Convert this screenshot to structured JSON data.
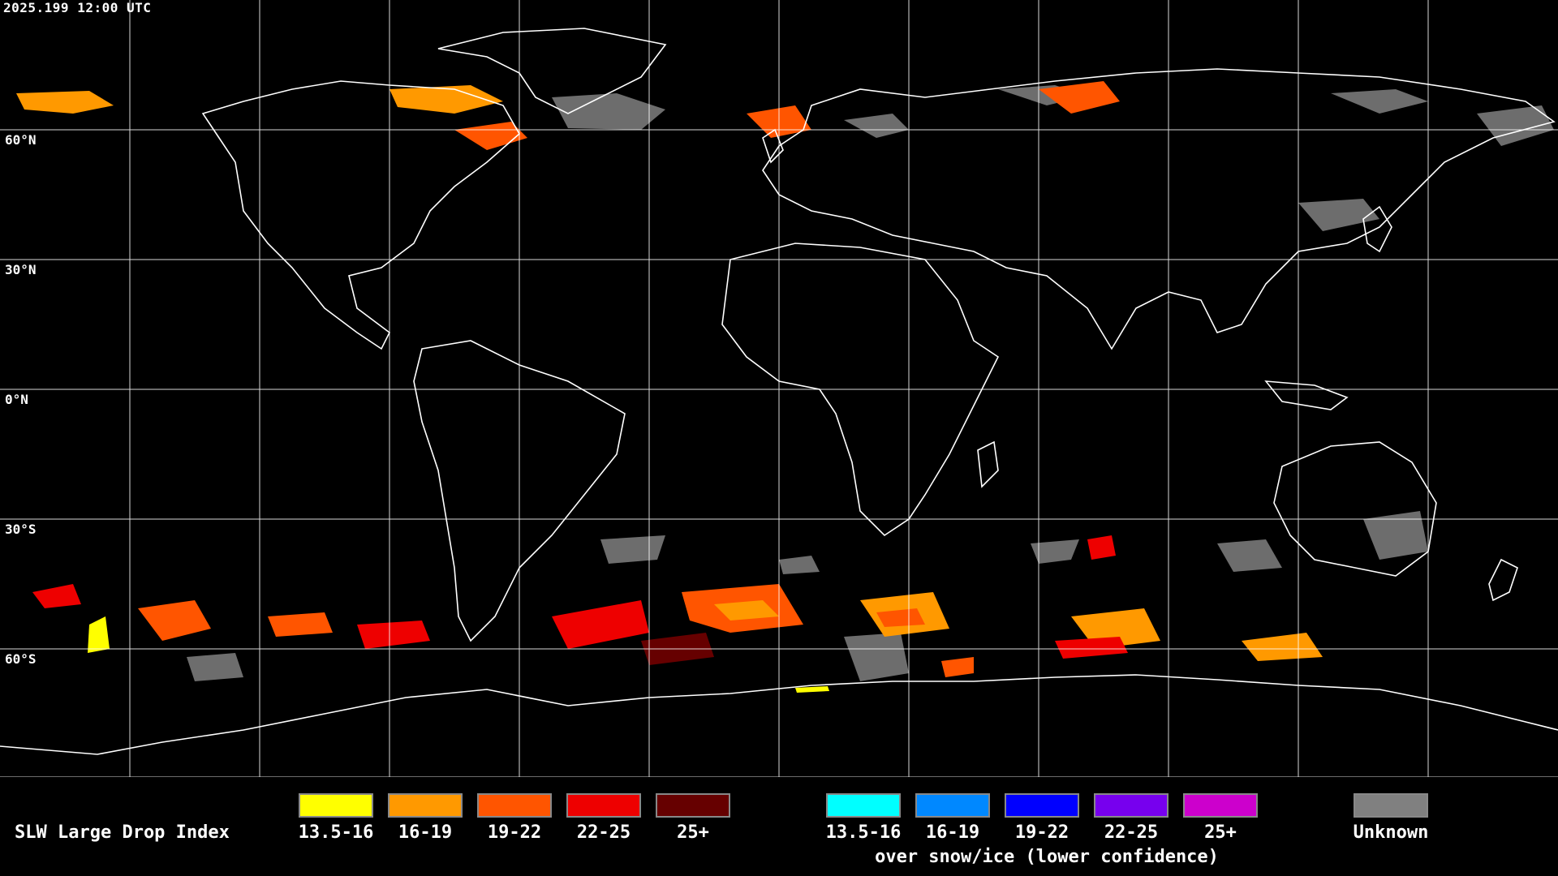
{
  "timestamp": "2025.199 12:00 UTC",
  "latitude_labels": [
    "60°N",
    "30°N",
    "0°N",
    "30°S",
    "60°S"
  ],
  "legend": {
    "title": "SLW Large Drop Index",
    "bins": [
      {
        "label": "13.5-16",
        "color": "#ffff00"
      },
      {
        "label": "16-19",
        "color": "#ff9900"
      },
      {
        "label": "19-22",
        "color": "#ff5500"
      },
      {
        "label": "22-25",
        "color": "#ee0000"
      },
      {
        "label": "25+",
        "color": "#660000"
      }
    ],
    "snow_bins": [
      {
        "label": "13.5-16",
        "color": "#00ffff"
      },
      {
        "label": "16-19",
        "color": "#0088ff"
      },
      {
        "label": "19-22",
        "color": "#0000ff"
      },
      {
        "label": "22-25",
        "color": "#7700ee"
      },
      {
        "label": "25+",
        "color": "#cc00cc"
      }
    ],
    "snow_note": "over snow/ice (lower confidence)",
    "unknown": {
      "label": "Unknown",
      "color": "#808080"
    }
  },
  "colors": {
    "background": "#000000",
    "grid": "#ffffff",
    "coastline": "#ffffff",
    "unknown_cloud": "#808080"
  }
}
